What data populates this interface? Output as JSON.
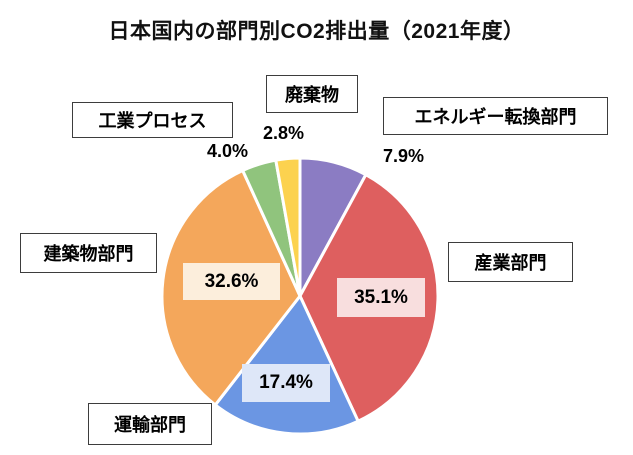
{
  "title": "日本国内の部門別CO2排出量（2021年度）",
  "chart_data": {
    "type": "pie",
    "title": "日本国内の部門別CO2排出量（2021年度）",
    "start_angle": "12-o'clock, clockwise",
    "legend_position": "callout-labels-around-pie",
    "sectors": [
      {
        "id": "energy",
        "label": "エネルギー転換部門",
        "value": 7.9,
        "pct_label": "7.9%",
        "color": "#8B7CC3",
        "pct_placement": "outside"
      },
      {
        "id": "industry",
        "label": "産業部門",
        "value": 35.1,
        "pct_label": "35.1%",
        "color": "#DE5F5F",
        "pct_placement": "inside",
        "pct_bg": "#F8DEDE"
      },
      {
        "id": "transport",
        "label": "運輸部門",
        "value": 17.4,
        "pct_label": "17.4%",
        "color": "#6B96E3",
        "pct_placement": "inside",
        "pct_bg": "#DEE7F8"
      },
      {
        "id": "buildings",
        "label": "建築物部門",
        "value": 32.6,
        "pct_label": "32.6%",
        "color": "#F4A75B",
        "pct_placement": "inside",
        "pct_bg": "#FCEEDC"
      },
      {
        "id": "process",
        "label": "工業プロセス",
        "value": 4.0,
        "pct_label": "4.0%",
        "color": "#90C47D",
        "pct_placement": "outside"
      },
      {
        "id": "waste",
        "label": "廃棄物",
        "value": 2.8,
        "pct_label": "2.8%",
        "color": "#FCD24F",
        "pct_placement": "outside"
      }
    ],
    "slice_border_color": "#FFFFFF"
  }
}
